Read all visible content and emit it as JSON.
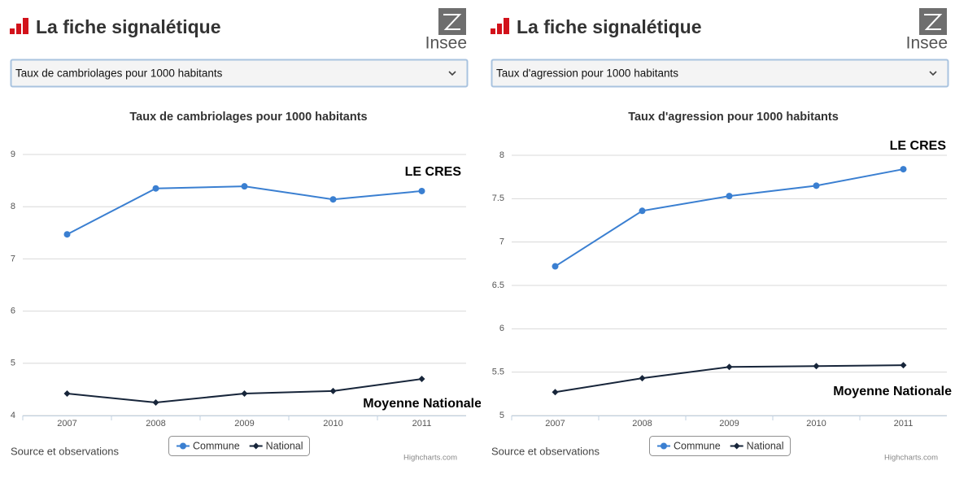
{
  "panels": [
    {
      "header": "La fiche signalétique",
      "logo": "Insee",
      "select": "Taux de cambriolages pour 1000 habitants",
      "source": "Source et observations",
      "credits": "Highcharts.com"
    },
    {
      "header": "La fiche signalétique",
      "logo": "Insee",
      "select": "Taux d'agression pour 1000 habitants",
      "source": "Source et observations",
      "credits": "Highcharts.com"
    }
  ],
  "chart_data": [
    {
      "type": "line",
      "title": "Taux de cambriolages pour 1000 habitants",
      "categories": [
        "2007",
        "2008",
        "2009",
        "2010",
        "2011"
      ],
      "series": [
        {
          "name": "Commune",
          "color": "#3a7fd1",
          "marker": "circle",
          "values": [
            7.47,
            8.35,
            8.39,
            8.14,
            8.3
          ]
        },
        {
          "name": "National",
          "color": "#17253a",
          "marker": "diamond",
          "values": [
            4.42,
            4.25,
            4.42,
            4.47,
            4.7
          ]
        }
      ],
      "annotations": [
        "LE CRES",
        "Moyenne Nationale"
      ],
      "ylim": [
        4,
        9
      ],
      "yticks": [
        4,
        5,
        6,
        7,
        8,
        9
      ],
      "grid": true,
      "legend": "bottom"
    },
    {
      "type": "line",
      "title": "Taux d'agression pour 1000 habitants",
      "categories": [
        "2007",
        "2008",
        "2009",
        "2010",
        "2011"
      ],
      "series": [
        {
          "name": "Commune",
          "color": "#3a7fd1",
          "marker": "circle",
          "values": [
            6.72,
            7.36,
            7.53,
            7.65,
            7.84
          ]
        },
        {
          "name": "National",
          "color": "#17253a",
          "marker": "diamond",
          "values": [
            5.27,
            5.43,
            5.56,
            5.57,
            5.58
          ]
        }
      ],
      "annotations": [
        "LE CRES",
        "Moyenne Nationale"
      ],
      "ylim": [
        5,
        8
      ],
      "yticks": [
        5,
        5.5,
        6,
        6.5,
        7,
        7.5,
        8
      ],
      "grid": true,
      "legend": "bottom"
    }
  ]
}
